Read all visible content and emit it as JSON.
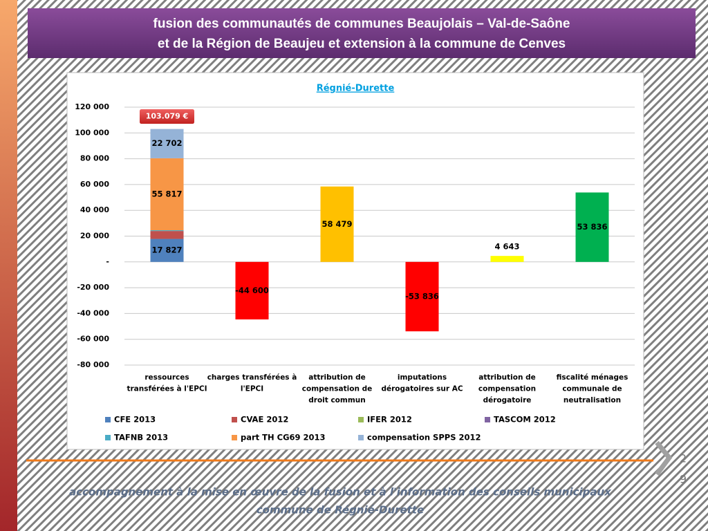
{
  "header": {
    "title": [
      "fusion des communautés de communes Beaujolais – Val-de-Saône",
      "et de la Région de Beaujeu et extension à la commune de Cenves"
    ]
  },
  "chart_data": {
    "type": "bar",
    "stacked": true,
    "title": "Régnié-Durette",
    "categories": [
      [
        "ressources",
        "transférées à l'EPCI"
      ],
      [
        "charges transférées à",
        "l'EPCI"
      ],
      [
        "attribution de",
        "compensation de",
        "droit commun"
      ],
      [
        "imputations",
        "dérogatoires sur AC"
      ],
      [
        "attribution de",
        "compensation",
        "dérogatoire"
      ],
      [
        "fiscalité ménages",
        "communale de",
        "neutralisation"
      ]
    ],
    "series": [
      {
        "name": "CFE 2013",
        "color": "#4f81bd",
        "values": [
          17827,
          null,
          null,
          null,
          null,
          null
        ],
        "value_labels": [
          "17 827",
          null,
          null,
          null,
          null,
          null
        ]
      },
      {
        "name": "CVAE 2012",
        "color": "#c0504d",
        "values": [
          6134,
          null,
          null,
          null,
          null,
          null
        ],
        "value_labels": [
          "6 134",
          null,
          null,
          null,
          null,
          null
        ]
      },
      {
        "name": "IFER 2012",
        "color": "#9bbb59",
        "values": [
          null,
          null,
          null,
          null,
          null,
          null
        ]
      },
      {
        "name": "TASCOM 2012",
        "color": "#8064a2",
        "values": [
          null,
          null,
          null,
          null,
          null,
          null
        ]
      },
      {
        "name": "TAFNB 2013",
        "color": "#4bacc6",
        "values": [
          599,
          null,
          null,
          null,
          null,
          null
        ]
      },
      {
        "name": "part TH CG69 2013",
        "color": "#f79646",
        "values": [
          55817,
          null,
          null,
          null,
          null,
          null
        ],
        "value_labels": [
          "55 817",
          null,
          null,
          null,
          null,
          null
        ]
      },
      {
        "name": "compensation SPPS 2012",
        "color": "#95b3d7",
        "values": [
          22702,
          null,
          null,
          null,
          null,
          null
        ],
        "value_labels": [
          "22 702",
          null,
          null,
          null,
          null,
          null
        ]
      },
      {
        "colors": [
          null,
          "#ff0000",
          "#ffc000",
          "#ff0000",
          "#ffff00",
          "#00b050"
        ],
        "values": [
          null,
          -44600,
          58479,
          -53836,
          4643,
          53836
        ],
        "value_labels": [
          null,
          "-44 600",
          "58 479",
          "-53 836",
          "4 643",
          "53 836"
        ]
      }
    ],
    "ylim": [
      -80000,
      120000
    ],
    "yticks": [
      {
        "value": -80000,
        "label": "-80 000"
      },
      {
        "value": -60000,
        "label": "-60 000"
      },
      {
        "value": -40000,
        "label": "-40 000"
      },
      {
        "value": -20000,
        "label": "-20 000"
      },
      {
        "value": 0,
        "label": "-"
      },
      {
        "value": 20000,
        "label": "20 000"
      },
      {
        "value": 40000,
        "label": "40 000"
      },
      {
        "value": 60000,
        "label": "60 000"
      },
      {
        "value": 80000,
        "label": "80 000"
      },
      {
        "value": 100000,
        "label": "100 000"
      },
      {
        "value": 120000,
        "label": "120 000"
      }
    ],
    "grid": true,
    "legend": "bottom",
    "annotation": "103.079 €"
  },
  "footer": {
    "line1": "accompagnement à la mise en œuvre de la fusion et à l'information des conseils municipaux",
    "line2": "commune de Régnié-Durette"
  },
  "page_number": [
    "2",
    "9"
  ]
}
